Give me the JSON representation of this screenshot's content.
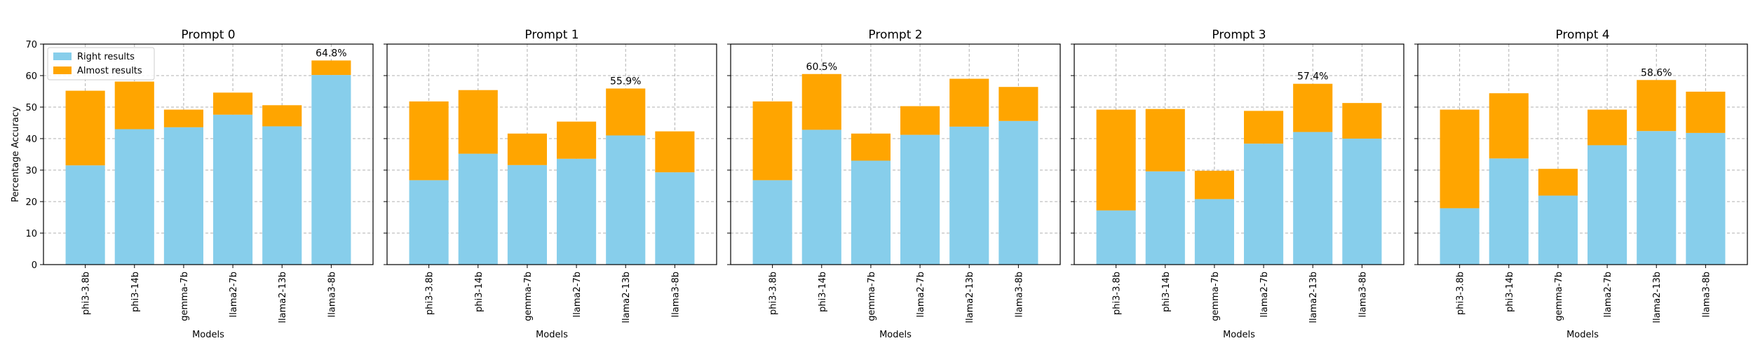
{
  "colors": {
    "right": "#87ceeb",
    "almost": "#ffa500",
    "grid": "#b0b0b0",
    "axis": "#000000"
  },
  "chart_data": [
    {
      "type": "bar",
      "stacked": true,
      "title": "Prompt 0",
      "xlabel": "Models",
      "ylabel": "Percentage Accuracy",
      "ylim": [
        0,
        70
      ],
      "yticks": [
        0,
        10,
        20,
        30,
        40,
        50,
        60,
        70
      ],
      "grid": true,
      "legend": {
        "position": "top-left",
        "entries": [
          "Right results",
          "Almost results"
        ]
      },
      "categories": [
        "phi3-3.8b",
        "phi3-14b",
        "gemma-7b",
        "llama2-7b",
        "llama2-13b",
        "llama3-8b"
      ],
      "series": [
        {
          "name": "Right results",
          "values": [
            31.5,
            43.0,
            43.6,
            47.6,
            43.9,
            60.2
          ]
        },
        {
          "name": "Almost results",
          "values": [
            23.7,
            15.1,
            5.6,
            7.0,
            6.7,
            4.6
          ]
        }
      ],
      "annotation": {
        "category": "llama3-8b",
        "text": "64.8%"
      }
    },
    {
      "type": "bar",
      "stacked": true,
      "title": "Prompt 1",
      "xlabel": "Models",
      "ylabel": "",
      "ylim": [
        0,
        70
      ],
      "yticks": [
        0,
        10,
        20,
        30,
        40,
        50,
        60,
        70
      ],
      "grid": true,
      "categories": [
        "phi3-3.8b",
        "phi3-14b",
        "gemma-7b",
        "llama2-7b",
        "llama2-13b",
        "llama3-8b"
      ],
      "series": [
        {
          "name": "Right results",
          "values": [
            26.8,
            35.2,
            31.6,
            33.6,
            41.0,
            29.3
          ]
        },
        {
          "name": "Almost results",
          "values": [
            25.0,
            20.2,
            10.0,
            11.8,
            14.9,
            13.0
          ]
        }
      ],
      "annotation": {
        "category": "llama2-13b",
        "text": "55.9%"
      }
    },
    {
      "type": "bar",
      "stacked": true,
      "title": "Prompt 2",
      "xlabel": "Models",
      "ylabel": "",
      "ylim": [
        0,
        70
      ],
      "yticks": [
        0,
        10,
        20,
        30,
        40,
        50,
        60,
        70
      ],
      "grid": true,
      "categories": [
        "phi3-3.8b",
        "phi3-14b",
        "gemma-7b",
        "llama2-7b",
        "llama2-13b",
        "llama3-8b"
      ],
      "series": [
        {
          "name": "Right results",
          "values": [
            26.8,
            42.8,
            33.0,
            41.2,
            43.8,
            45.6
          ]
        },
        {
          "name": "Almost results",
          "values": [
            25.0,
            17.7,
            8.6,
            9.1,
            15.2,
            10.8
          ]
        }
      ],
      "annotation": {
        "category": "phi3-14b",
        "text": "60.5%"
      }
    },
    {
      "type": "bar",
      "stacked": true,
      "title": "Prompt 3",
      "xlabel": "Models",
      "ylabel": "",
      "ylim": [
        0,
        70
      ],
      "yticks": [
        0,
        10,
        20,
        30,
        40,
        50,
        60,
        70
      ],
      "grid": true,
      "categories": [
        "phi3-3.8b",
        "phi3-14b",
        "gemma-7b",
        "llama2-7b",
        "llama2-13b",
        "llama3-8b"
      ],
      "series": [
        {
          "name": "Right results",
          "values": [
            17.2,
            29.6,
            20.8,
            38.4,
            42.1,
            40.0
          ]
        },
        {
          "name": "Almost results",
          "values": [
            32.0,
            19.8,
            9.0,
            10.4,
            15.3,
            11.3
          ]
        }
      ],
      "annotation": {
        "category": "llama2-13b",
        "text": "57.4%"
      }
    },
    {
      "type": "bar",
      "stacked": true,
      "title": "Prompt 4",
      "xlabel": "Models",
      "ylabel": "",
      "ylim": [
        0,
        70
      ],
      "yticks": [
        0,
        10,
        20,
        30,
        40,
        50,
        60,
        70
      ],
      "grid": true,
      "categories": [
        "phi3-3.8b",
        "phi3-14b",
        "gemma-7b",
        "llama2-7b",
        "llama2-13b",
        "llama3-8b"
      ],
      "series": [
        {
          "name": "Right results",
          "values": [
            17.9,
            33.7,
            21.9,
            37.9,
            42.4,
            41.8
          ]
        },
        {
          "name": "Almost results",
          "values": [
            31.3,
            20.7,
            8.5,
            11.3,
            16.2,
            13.1
          ]
        }
      ],
      "annotation": {
        "category": "llama2-13b",
        "text": "58.6%"
      }
    }
  ]
}
